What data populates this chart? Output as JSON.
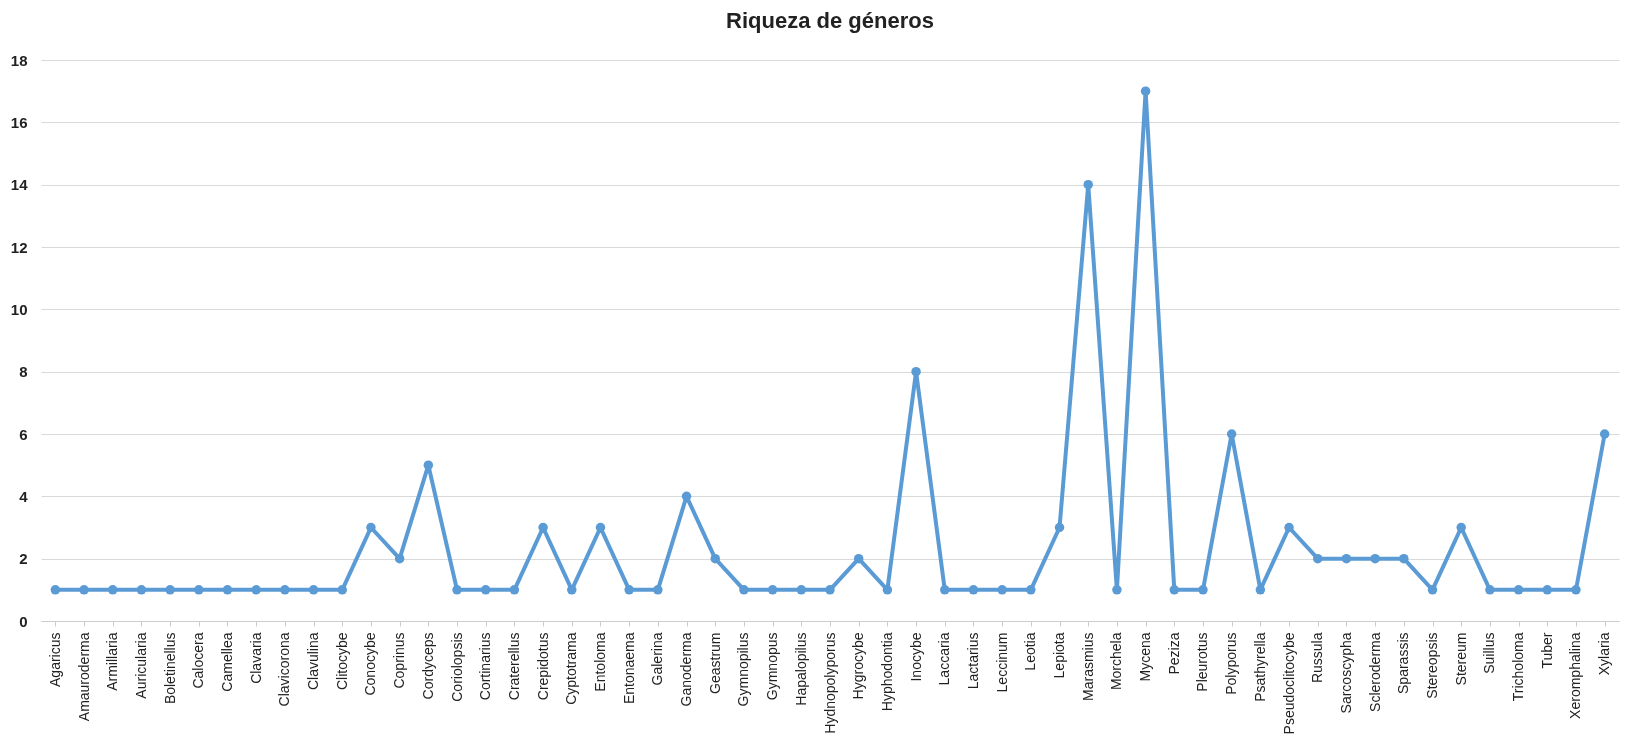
{
  "chart_data": {
    "type": "line",
    "title": "Riqueza de géneros",
    "categories": [
      "Agaricus",
      "Amauroderma",
      "Armillaria",
      "Auricularia",
      "Boletinellus",
      "Calocera",
      "Camellea",
      "Clavaria",
      "Clavicorona",
      "Clavulina",
      "Clitocybe",
      "Conocybe",
      "Coprinus",
      "Cordyceps",
      "Coriolopsis",
      "Cortinarius",
      "Craterellus",
      "Crepidotus",
      "Cyptotrama",
      "Entoloma",
      "Entonaema",
      "Galerina",
      "Ganoderma",
      "Geastrum",
      "Gymnopilus",
      "Gymnopus",
      "Hapalopilus",
      "Hydnopolyporus",
      "Hygrocybe",
      "Hyphodontia",
      "Inocybe",
      "Laccaria",
      "Lactarius",
      "Leccinum",
      "Leotia",
      "Lepiota",
      "Marasmius",
      "Morchela",
      "Mycena",
      "Peziza",
      "Pleurotus",
      "Polyporus",
      "Psathyrella",
      "Pseudoclitocybe",
      "Russula",
      "Sarcoscypha",
      "Scleroderma",
      "Sparassis",
      "Stereopsis",
      "Stereum",
      "Suillus",
      "Tricholoma",
      "Tuber",
      "Xeromphalina",
      "Xylaria"
    ],
    "series": [
      {
        "color": "#5b9bd5",
        "values": [
          1,
          1,
          1,
          1,
          1,
          1,
          1,
          1,
          1,
          1,
          1,
          3,
          2,
          5,
          1,
          1,
          1,
          3,
          1,
          3,
          1,
          1,
          4,
          2,
          1,
          1,
          1,
          1,
          2,
          1,
          8,
          1,
          1,
          1,
          1,
          3,
          14,
          1,
          17,
          1,
          1,
          6,
          1,
          3,
          2,
          2,
          2,
          2,
          1,
          3,
          1,
          1,
          1,
          1,
          6
        ]
      }
    ],
    "ylim": [
      0,
      18
    ],
    "yticks": [
      0,
      2,
      4,
      6,
      8,
      10,
      12,
      14,
      16,
      18
    ],
    "grid": "y",
    "legend": false,
    "marker": "circle",
    "line_style": "solid"
  }
}
